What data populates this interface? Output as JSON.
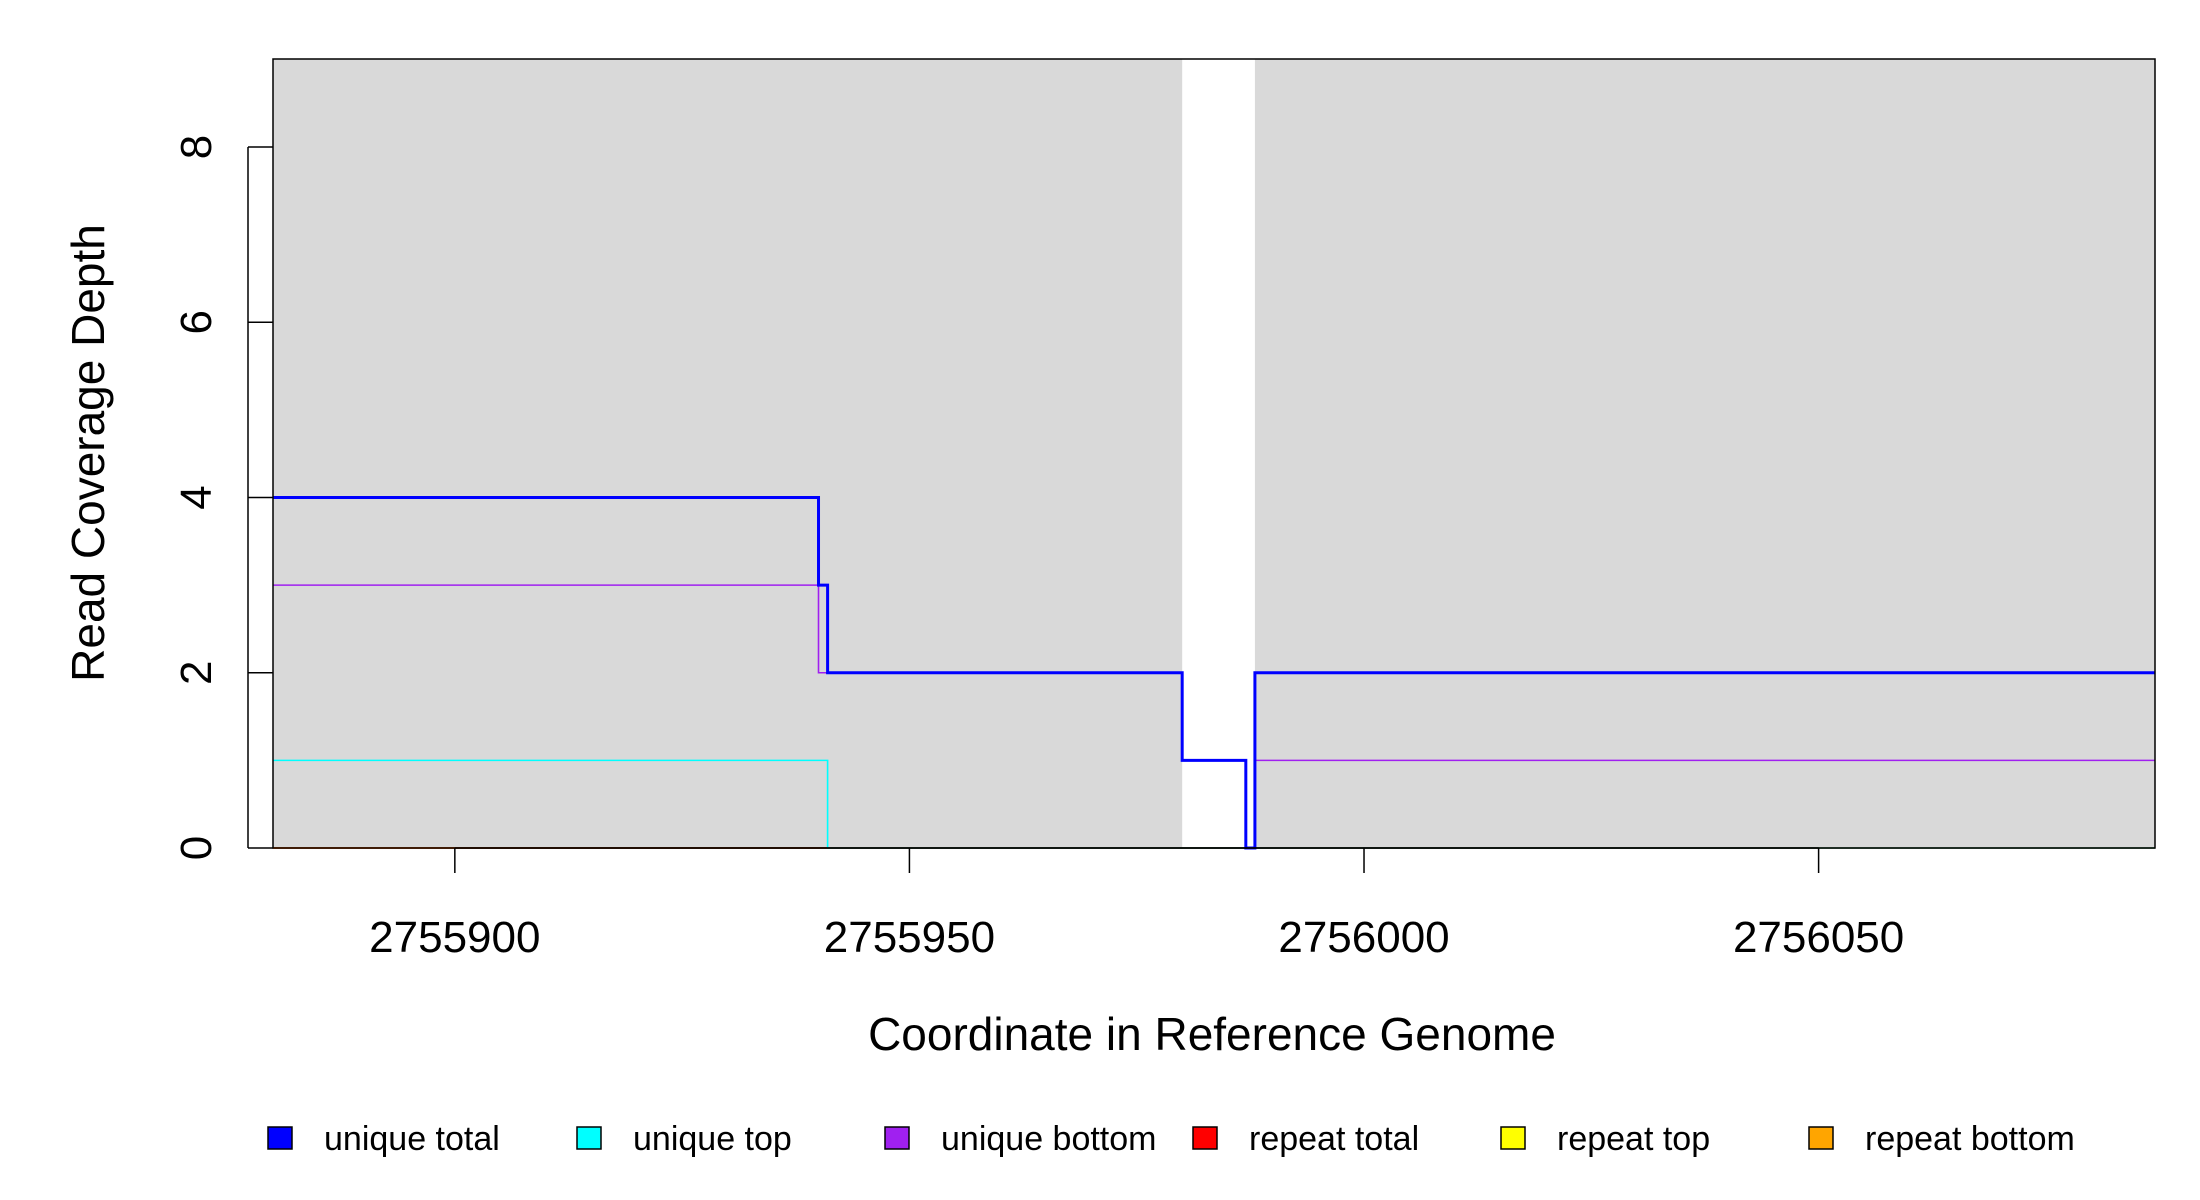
{
  "chart_data": {
    "type": "line",
    "xlabel": "Coordinate in Reference Genome",
    "ylabel": "Read Coverage Depth",
    "xlim": [
      2755880,
      2756087
    ],
    "ylim": [
      0,
      9
    ],
    "x_ticks": [
      2755900,
      2755950,
      2756000,
      2756050
    ],
    "y_ticks": [
      0,
      2,
      4,
      6,
      8
    ],
    "background_color": "#d9d9d9",
    "uncovered_regions": [
      [
        2755980,
        2755988
      ]
    ],
    "legend_position": "bottom",
    "series": [
      {
        "name": "unique total",
        "color": "#0000ff",
        "steps": [
          [
            2755880,
            4
          ],
          [
            2755940,
            3
          ],
          [
            2755941,
            2
          ],
          [
            2755980,
            1
          ],
          [
            2755987,
            0
          ],
          [
            2755988,
            2
          ],
          [
            2756087,
            2
          ]
        ]
      },
      {
        "name": "unique top",
        "color": "#00ffff",
        "steps": [
          [
            2755880,
            1
          ],
          [
            2755941,
            0
          ],
          [
            2756087,
            0
          ]
        ]
      },
      {
        "name": "unique bottom",
        "color": "#a020f0",
        "steps": [
          [
            2755880,
            3
          ],
          [
            2755940,
            2
          ],
          [
            2755980,
            1
          ],
          [
            2755987,
            0
          ],
          [
            2755988,
            1
          ],
          [
            2756087,
            1
          ]
        ]
      },
      {
        "name": "repeat total",
        "color": "#ff0000",
        "steps": [
          [
            2755880,
            0
          ],
          [
            2756087,
            0
          ]
        ]
      },
      {
        "name": "repeat top",
        "color": "#ffff00",
        "steps": [
          [
            2755880,
            0
          ],
          [
            2756087,
            0
          ]
        ]
      },
      {
        "name": "repeat bottom",
        "color": "#ffa500",
        "steps": [
          [
            2755880,
            0
          ],
          [
            2756087,
            0
          ]
        ]
      }
    ]
  }
}
